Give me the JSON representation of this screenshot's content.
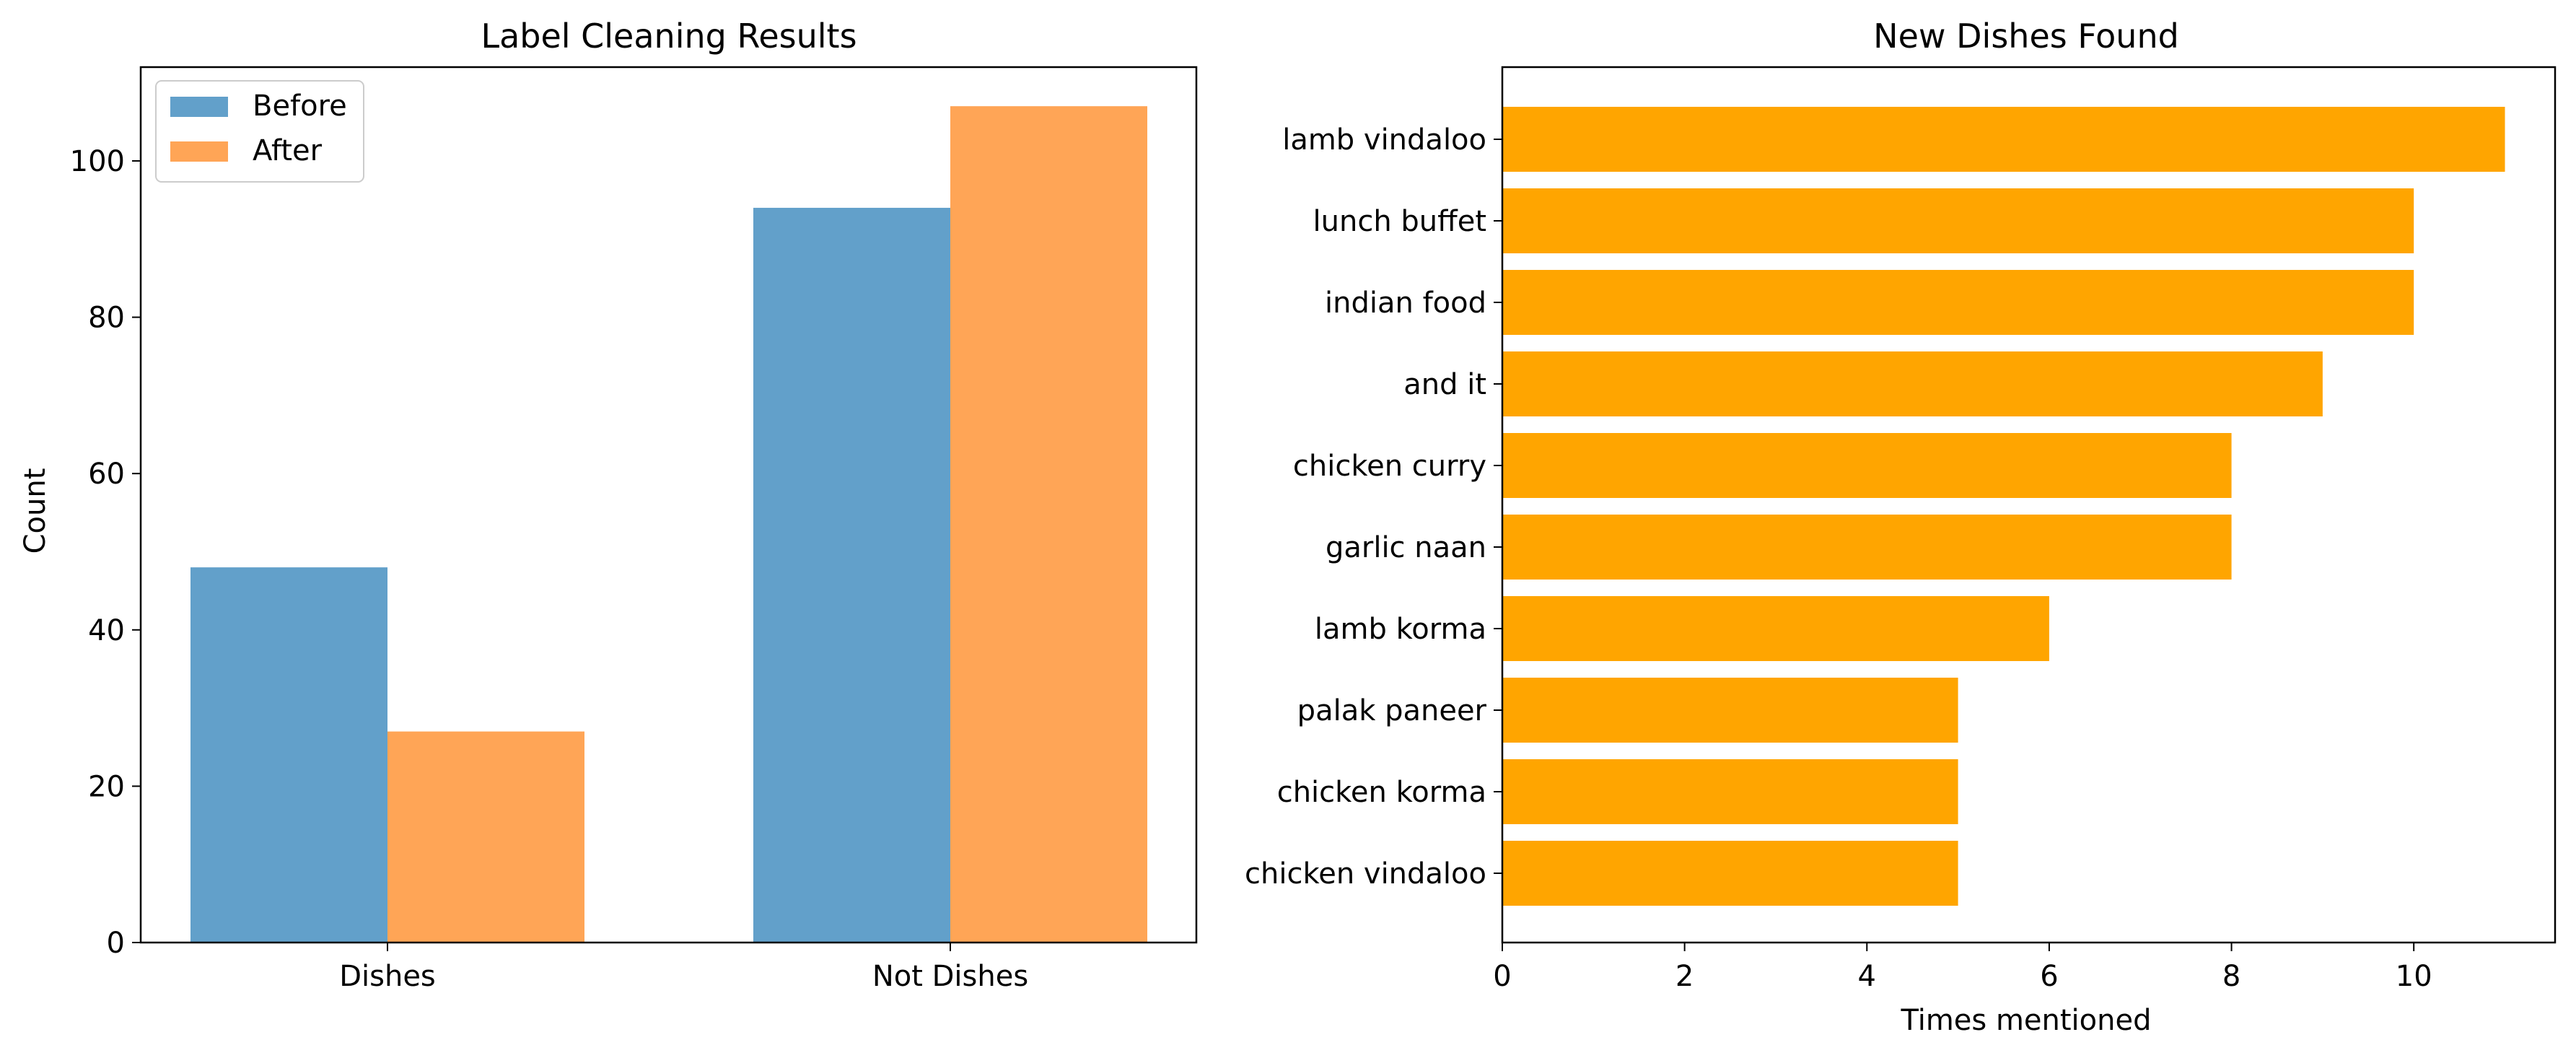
{
  "chart_data": [
    {
      "type": "bar",
      "title": "Label Cleaning Results",
      "xlabel": "",
      "ylabel": "Count",
      "categories": [
        "Dishes",
        "Not Dishes"
      ],
      "series": [
        {
          "name": "Before",
          "values": [
            48,
            94
          ],
          "color": "#1f77b4"
        },
        {
          "name": "After",
          "values": [
            27,
            107
          ],
          "color": "#ff7f0e"
        }
      ],
      "ylim": [
        0,
        112
      ],
      "yticks": [
        0,
        20,
        40,
        60,
        80,
        100
      ],
      "legend": "top-left",
      "grid": false
    },
    {
      "type": "barh",
      "title": "New Dishes Found",
      "xlabel": "Times mentioned",
      "ylabel": "",
      "categories": [
        "lamb vindaloo",
        "lunch buffet",
        "indian food",
        "and it",
        "chicken curry",
        "garlic naan",
        "lamb korma",
        "palak paneer",
        "chicken korma",
        "chicken vindaloo"
      ],
      "values": [
        11,
        10,
        10,
        9,
        8,
        8,
        6,
        5,
        5,
        5
      ],
      "color": "#ffa500",
      "xlim": [
        0,
        11.55
      ],
      "xticks": [
        0,
        2,
        4,
        6,
        8,
        10
      ],
      "grid": false
    }
  ]
}
